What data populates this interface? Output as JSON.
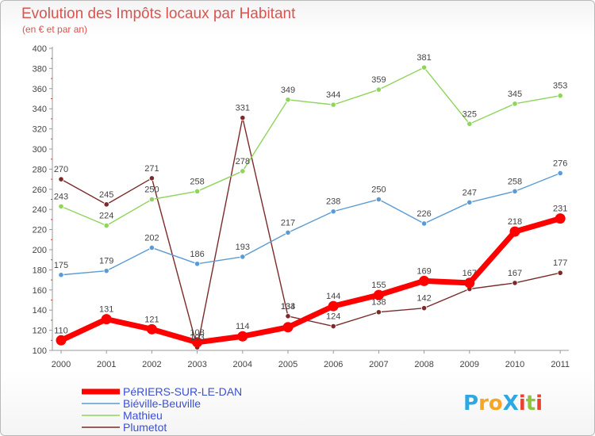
{
  "chart_data": {
    "type": "line",
    "title": "Evolution des Impôts locaux par Habitant",
    "subtitle": "(en € et par an)",
    "categories": [
      "2000",
      "2001",
      "2002",
      "2003",
      "2004",
      "2005",
      "2006",
      "2007",
      "2008",
      "2009",
      "2010",
      "2011"
    ],
    "ylim": [
      100,
      400
    ],
    "yticks": [
      100,
      120,
      140,
      160,
      180,
      200,
      220,
      240,
      260,
      280,
      300,
      320,
      340,
      360,
      380,
      400
    ],
    "grid": false,
    "legend_position": "bottom-left",
    "series": [
      {
        "name": "PéRIERS-SUR-LE-DAN",
        "color": "#ff0000",
        "values": [
          110,
          131,
          121,
          108,
          114,
          123,
          144,
          155,
          169,
          167,
          218,
          231
        ]
      },
      {
        "name": "Biéville-Beuville",
        "color": "#5b9bd5",
        "values": [
          175,
          179,
          202,
          186,
          193,
          217,
          238,
          250,
          226,
          247,
          258,
          276
        ]
      },
      {
        "name": "Mathieu",
        "color": "#8fd45b",
        "values": [
          243,
          224,
          250,
          258,
          278,
          349,
          344,
          359,
          381,
          325,
          345,
          353
        ]
      },
      {
        "name": "Plumetot",
        "color": "#7b2a2a",
        "values": [
          270,
          245,
          271,
          103,
          331,
          134,
          124,
          138,
          142,
          161,
          167,
          177
        ]
      }
    ],
    "data_labels": {
      "PéRIERS-SUR-LE-DAN": [
        110,
        131,
        121,
        108,
        114,
        null,
        144,
        155,
        169,
        167,
        218,
        231
      ],
      "Biéville-Beuville": [
        175,
        179,
        202,
        186,
        193,
        217,
        238,
        250,
        226,
        247,
        258,
        276
      ],
      "Mathieu": [
        243,
        224,
        250,
        258,
        278,
        349,
        344,
        359,
        381,
        325,
        345,
        353
      ],
      "Plumetot": [
        270,
        245,
        271,
        103,
        331,
        134,
        124,
        138,
        142,
        null,
        167,
        177
      ],
      "extra_133": 133
    }
  },
  "logo": {
    "text": "ProXiti",
    "letters": [
      "P",
      "r",
      "o",
      "X",
      "i",
      "t",
      "i"
    ],
    "colors": [
      "#2ea8e0",
      "#f5a623",
      "#f5a623",
      "#2ea8e0",
      "#e8432e",
      "#8cc63f",
      "#e8432e"
    ]
  }
}
